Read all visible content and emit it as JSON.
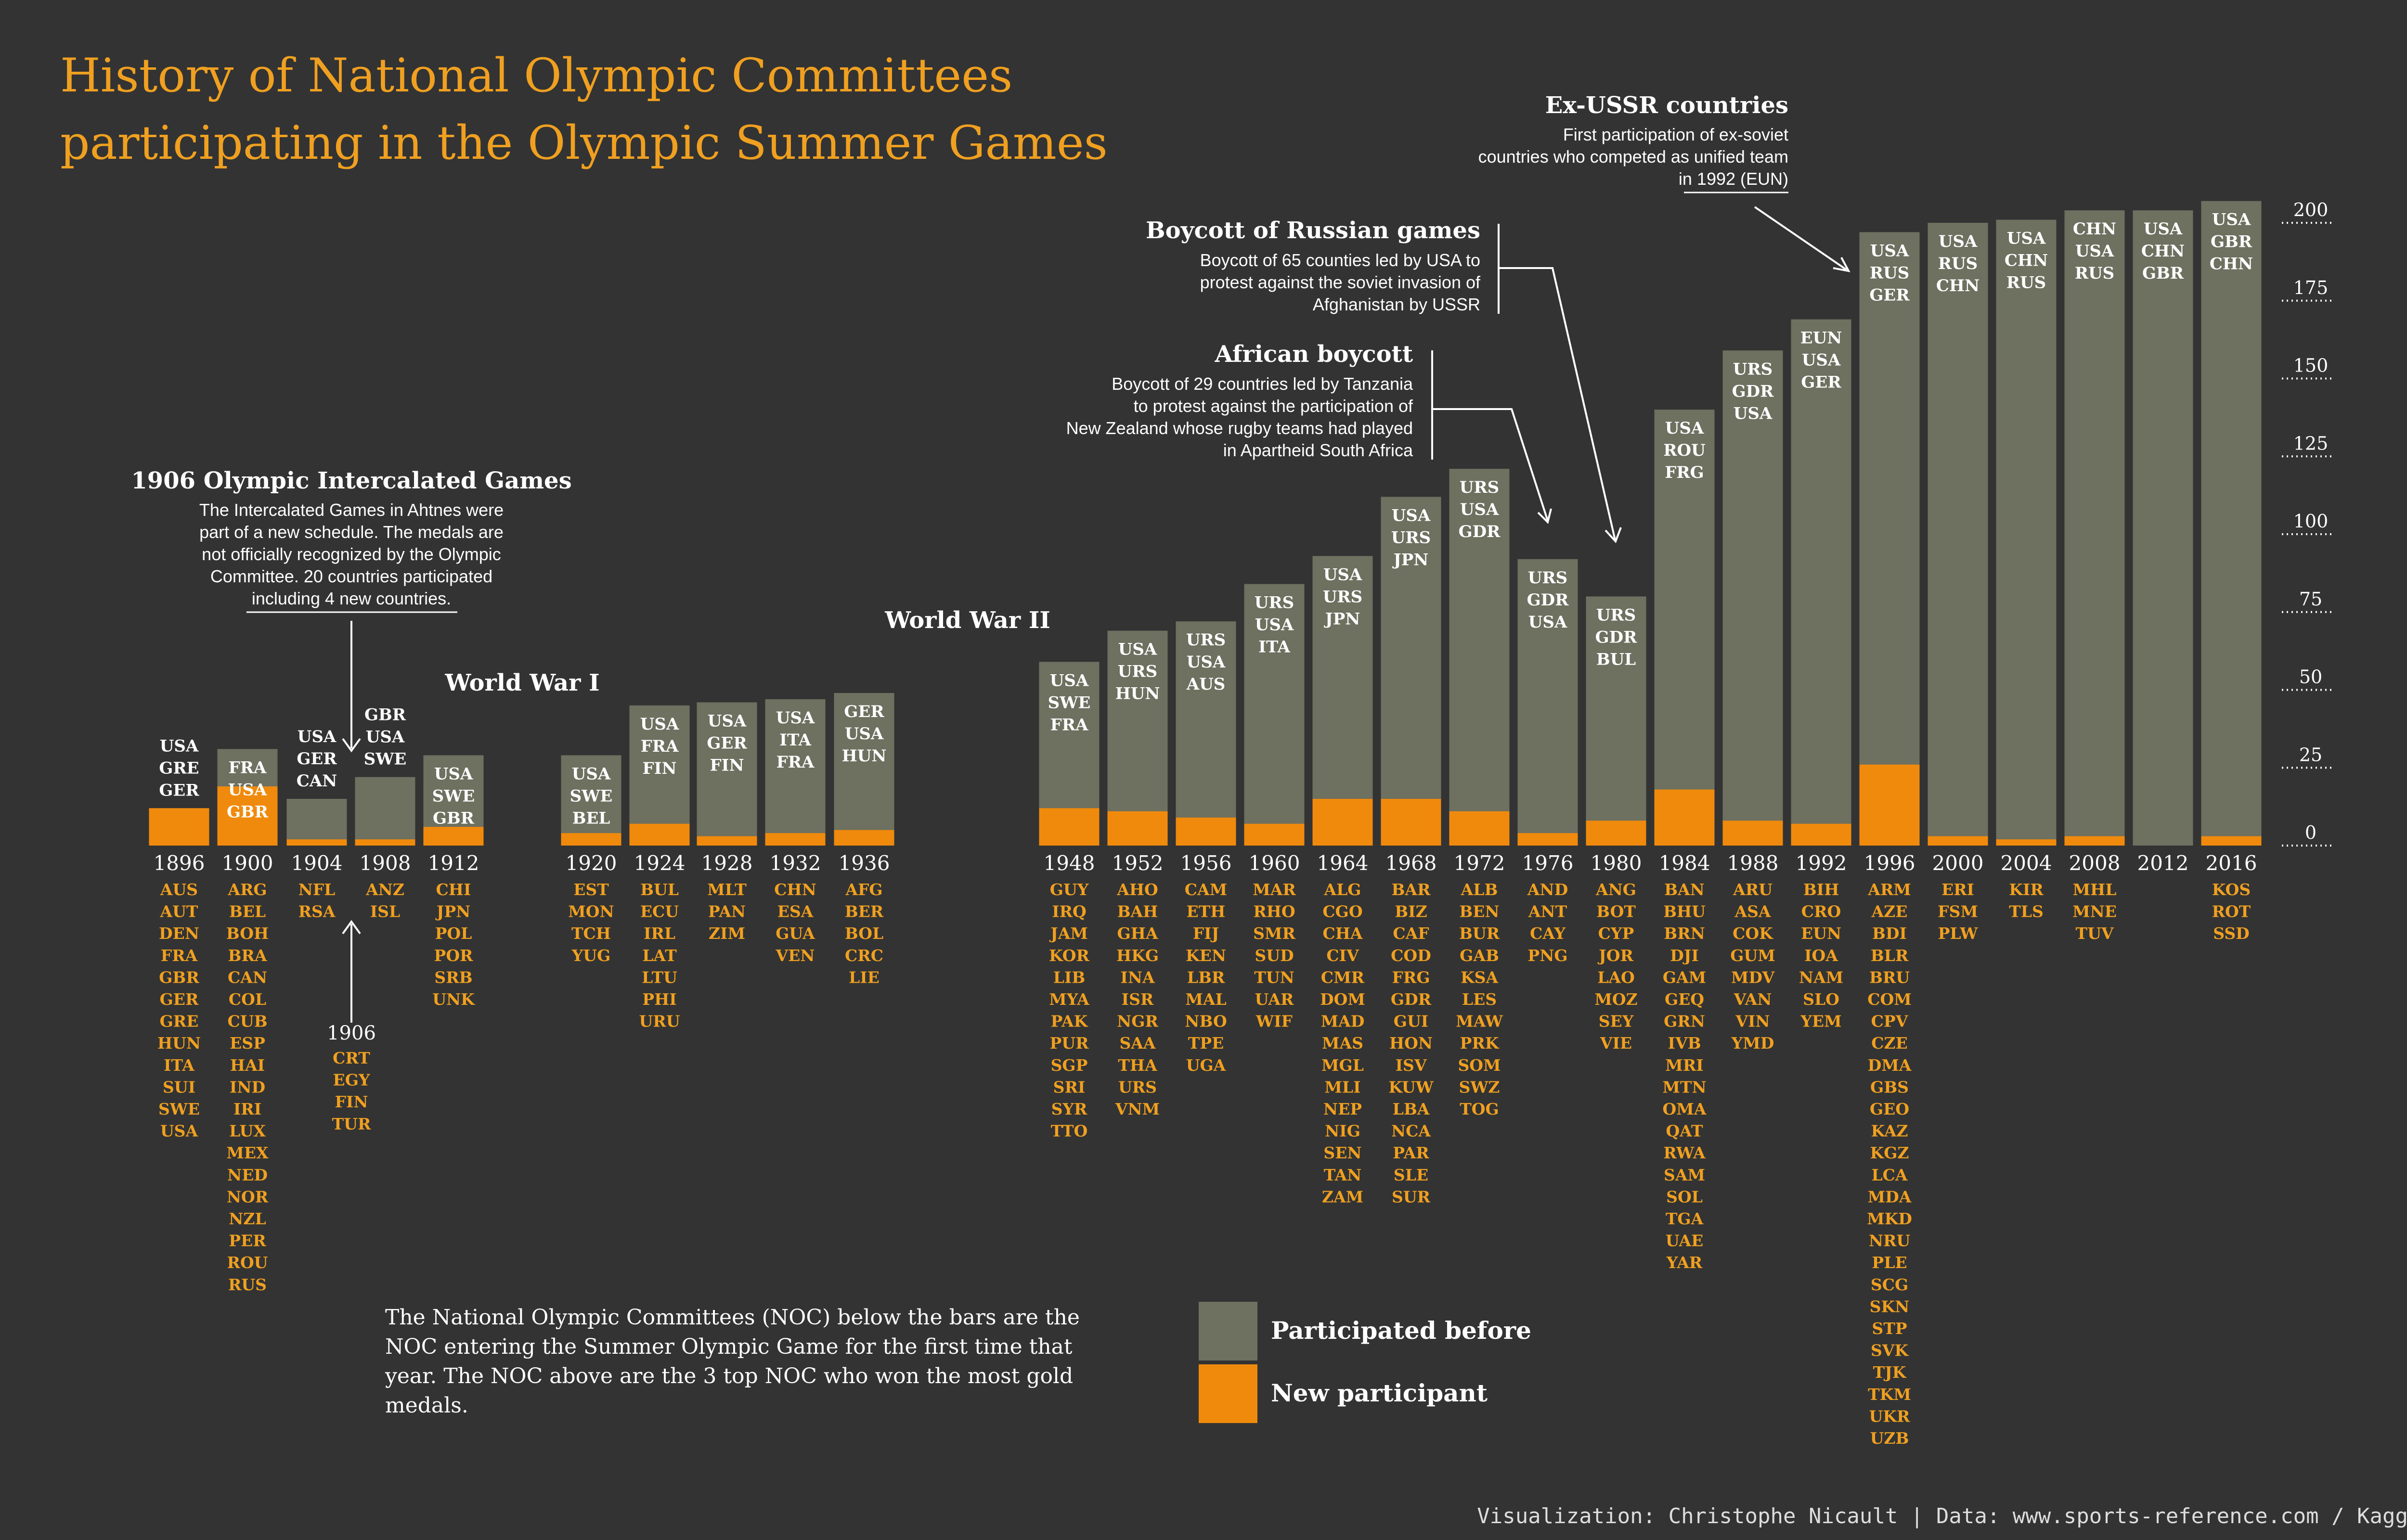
{
  "title_lines": [
    "History of National Olympic Committees",
    "participating in the Olympic Summer Games"
  ],
  "colors": {
    "background": "#333333",
    "participated_before": "#6e7060",
    "new_participant": "#f08a0c",
    "title": "#f0a020",
    "new_noc_text": "#f0a020",
    "text": "#ffffff"
  },
  "chart_data": {
    "type": "bar",
    "stacked": true,
    "ylim": [
      0,
      205
    ],
    "yticks": [
      0,
      25,
      50,
      75,
      100,
      125,
      150,
      175,
      200
    ],
    "series": [
      {
        "name": "Participated before"
      },
      {
        "name": "New participant"
      }
    ],
    "games": [
      {
        "year": "1896",
        "total": 12,
        "new": 12,
        "top3": [
          "USA",
          "GRE",
          "GER"
        ],
        "new_nocs": [
          "AUS",
          "AUT",
          "DEN",
          "FRA",
          "GBR",
          "GER",
          "GRE",
          "HUN",
          "ITA",
          "SUI",
          "SWE",
          "USA"
        ]
      },
      {
        "year": "1900",
        "total": 31,
        "new": 19,
        "top3": [
          "FRA",
          "USA",
          "GBR"
        ],
        "new_nocs": [
          "ARG",
          "BEL",
          "BOH",
          "BRA",
          "CAN",
          "COL",
          "CUB",
          "ESP",
          "HAI",
          "IND",
          "IRI",
          "LUX",
          "MEX",
          "NED",
          "NOR",
          "NZL",
          "PER",
          "ROU",
          "RUS"
        ]
      },
      {
        "year": "1904",
        "total": 15,
        "new": 2,
        "top3": [
          "USA",
          "GER",
          "CAN"
        ],
        "new_nocs": [
          "NFL",
          "RSA"
        ]
      },
      {
        "year": "1908",
        "total": 22,
        "new": 2,
        "top3": [
          "GBR",
          "USA",
          "SWE"
        ],
        "new_nocs": [
          "ANZ",
          "ISL"
        ]
      },
      {
        "year": "1912",
        "total": 29,
        "new": 6,
        "top3": [
          "USA",
          "SWE",
          "GBR"
        ],
        "new_nocs": [
          "CHI",
          "JPN",
          "POL",
          "POR",
          "SRB",
          "UNK"
        ]
      },
      {
        "year": "1920",
        "total": 29,
        "new": 4,
        "top3": [
          "USA",
          "SWE",
          "BEL"
        ],
        "new_nocs": [
          "EST",
          "MON",
          "TCH",
          "YUG"
        ]
      },
      {
        "year": "1924",
        "total": 45,
        "new": 7,
        "top3": [
          "USA",
          "FRA",
          "FIN"
        ],
        "new_nocs": [
          "BUL",
          "ECU",
          "IRL",
          "LAT",
          "LTU",
          "PHI",
          "URU"
        ]
      },
      {
        "year": "1928",
        "total": 46,
        "new": 3,
        "top3": [
          "USA",
          "GER",
          "FIN"
        ],
        "new_nocs": [
          "MLT",
          "PAN",
          "ZIM"
        ]
      },
      {
        "year": "1932",
        "total": 47,
        "new": 4,
        "top3": [
          "USA",
          "ITA",
          "FRA"
        ],
        "new_nocs": [
          "CHN",
          "ESA",
          "GUA",
          "VEN"
        ]
      },
      {
        "year": "1936",
        "total": 49,
        "new": 5,
        "top3": [
          "GER",
          "USA",
          "HUN"
        ],
        "new_nocs": [
          "AFG",
          "BER",
          "BOL",
          "CRC",
          "LIE"
        ]
      },
      {
        "year": "1948",
        "total": 59,
        "new": 12,
        "top3": [
          "USA",
          "SWE",
          "FRA"
        ],
        "new_nocs": [
          "GUY",
          "IRQ",
          "JAM",
          "KOR",
          "LIB",
          "MYA",
          "PAK",
          "PUR",
          "SGP",
          "SRI",
          "SYR",
          "TTO"
        ]
      },
      {
        "year": "1952",
        "total": 69,
        "new": 11,
        "top3": [
          "USA",
          "URS",
          "HUN"
        ],
        "new_nocs": [
          "AHO",
          "BAH",
          "GHA",
          "HKG",
          "INA",
          "ISR",
          "NGR",
          "SAA",
          "THA",
          "URS",
          "VNM"
        ]
      },
      {
        "year": "1956",
        "total": 72,
        "new": 9,
        "top3": [
          "URS",
          "USA",
          "AUS"
        ],
        "new_nocs": [
          "CAM",
          "ETH",
          "FIJ",
          "KEN",
          "LBR",
          "MAL",
          "NBO",
          "TPE",
          "UGA"
        ]
      },
      {
        "year": "1960",
        "total": 84,
        "new": 7,
        "top3": [
          "URS",
          "USA",
          "ITA"
        ],
        "new_nocs": [
          "MAR",
          "RHO",
          "SMR",
          "SUD",
          "TUN",
          "UAR",
          "WIF"
        ]
      },
      {
        "year": "1964",
        "total": 93,
        "new": 15,
        "top3": [
          "USA",
          "URS",
          "JPN"
        ],
        "new_nocs": [
          "ALG",
          "CGO",
          "CHA",
          "CIV",
          "CMR",
          "DOM",
          "MAD",
          "MAS",
          "MGL",
          "MLI",
          "NEP",
          "NIG",
          "SEN",
          "TAN",
          "ZAM"
        ]
      },
      {
        "year": "1968",
        "total": 112,
        "new": 15,
        "top3": [
          "USA",
          "URS",
          "JPN"
        ],
        "new_nocs": [
          "BAR",
          "BIZ",
          "CAF",
          "COD",
          "FRG",
          "GDR",
          "GUI",
          "HON",
          "ISV",
          "KUW",
          "LBA",
          "NCA",
          "PAR",
          "SLE",
          "SUR"
        ]
      },
      {
        "year": "1972",
        "total": 121,
        "new": 11,
        "top3": [
          "URS",
          "USA",
          "GDR"
        ],
        "new_nocs": [
          "ALB",
          "BEN",
          "BUR",
          "GAB",
          "KSA",
          "LES",
          "MAW",
          "PRK",
          "SOM",
          "SWZ",
          "TOG"
        ]
      },
      {
        "year": "1976",
        "total": 92,
        "new": 4,
        "top3": [
          "URS",
          "GDR",
          "USA"
        ],
        "new_nocs": [
          "AND",
          "ANT",
          "CAY",
          "PNG"
        ]
      },
      {
        "year": "1980",
        "total": 80,
        "new": 8,
        "top3": [
          "URS",
          "GDR",
          "BUL"
        ],
        "new_nocs": [
          "ANG",
          "BOT",
          "CYP",
          "JOR",
          "LAO",
          "MOZ",
          "SEY",
          "VIE"
        ]
      },
      {
        "year": "1984",
        "total": 140,
        "new": 18,
        "top3": [
          "USA",
          "ROU",
          "FRG"
        ],
        "new_nocs": [
          "BAN",
          "BHU",
          "BRN",
          "DJI",
          "GAM",
          "GEQ",
          "GRN",
          "IVB",
          "MRI",
          "MTN",
          "OMA",
          "QAT",
          "RWA",
          "SAM",
          "SOL",
          "TGA",
          "UAE",
          "YAR"
        ]
      },
      {
        "year": "1988",
        "total": 159,
        "new": 8,
        "top3": [
          "URS",
          "GDR",
          "USA"
        ],
        "new_nocs": [
          "ARU",
          "ASA",
          "COK",
          "GUM",
          "MDV",
          "VAN",
          "VIN",
          "YMD"
        ]
      },
      {
        "year": "1992",
        "total": 169,
        "new": 7,
        "top3": [
          "EUN",
          "USA",
          "GER"
        ],
        "new_nocs": [
          "BIH",
          "CRO",
          "EUN",
          "IOA",
          "NAM",
          "SLO",
          "YEM"
        ]
      },
      {
        "year": "1996",
        "total": 197,
        "new": 26,
        "top3": [
          "USA",
          "RUS",
          "GER"
        ],
        "new_nocs": [
          "ARM",
          "AZE",
          "BDI",
          "BLR",
          "BRU",
          "COM",
          "CPV",
          "CZE",
          "DMA",
          "GBS",
          "GEO",
          "KAZ",
          "KGZ",
          "LCA",
          "MDA",
          "MKD",
          "NRU",
          "PLE",
          "SCG",
          "SKN",
          "STP",
          "SVK",
          "TJK",
          "TKM",
          "UKR",
          "UZB"
        ]
      },
      {
        "year": "2000",
        "total": 200,
        "new": 3,
        "top3": [
          "USA",
          "RUS",
          "CHN"
        ],
        "new_nocs": [
          "ERI",
          "FSM",
          "PLW"
        ]
      },
      {
        "year": "2004",
        "total": 201,
        "new": 2,
        "top3": [
          "USA",
          "CHN",
          "RUS"
        ],
        "new_nocs": [
          "KIR",
          "TLS"
        ]
      },
      {
        "year": "2008",
        "total": 204,
        "new": 3,
        "top3": [
          "CHN",
          "USA",
          "RUS"
        ],
        "new_nocs": [
          "MHL",
          "MNE",
          "TUV"
        ]
      },
      {
        "year": "2012",
        "total": 204,
        "new": 0,
        "top3": [
          "USA",
          "CHN",
          "GBR"
        ],
        "new_nocs": []
      },
      {
        "year": "2016",
        "total": 207,
        "new": 3,
        "top3": [
          "USA",
          "GBR",
          "CHN"
        ],
        "new_nocs": [
          "KOS",
          "ROT",
          "SSD"
        ]
      }
    ],
    "extra_1906": {
      "year": "1906",
      "new_nocs": [
        "CRT",
        "EGY",
        "FIN",
        "TUR"
      ]
    }
  },
  "annotations": {
    "intercalated": {
      "title": "1906 Olympic Intercalated Games",
      "lines": [
        "The Intercalated Games in Ahtnes were",
        "part of a new schedule. The medals are",
        "not officially recognized by the Olympic",
        "Committee. 20 countries participated",
        "including 4 new countries."
      ]
    },
    "ww1": "World War I",
    "ww2": "World War II",
    "african": {
      "title": "African boycott",
      "lines": [
        "Boycott of 29 countries led by Tanzania",
        "to protest against the participation of",
        "New Zealand whose rugby teams had played",
        "in Apartheid South Africa"
      ]
    },
    "russian": {
      "title": "Boycott of Russian games",
      "lines": [
        "Boycott of 65 counties led by USA to",
        "protest against the soviet invasion of",
        "Afghanistan by USSR"
      ]
    },
    "exussr": {
      "title": "Ex-USSR countries",
      "lines": [
        "First participation of ex-soviet",
        "countries who competed as unified team",
        "in 1992 (EUN)"
      ]
    }
  },
  "note_lines": [
    "The National Olympic Committees (NOC) below the bars are the",
    "NOC entering the Summer Olympic Game for the first time that",
    "year. The NOC above are the 3 top NOC who won the most gold",
    "medals."
  ],
  "legend": {
    "participated_before": "Participated before",
    "new_participant": "New participant"
  },
  "credit": "Visualization: Christophe Nicault | Data: www.sports-reference.com / Kaggle"
}
